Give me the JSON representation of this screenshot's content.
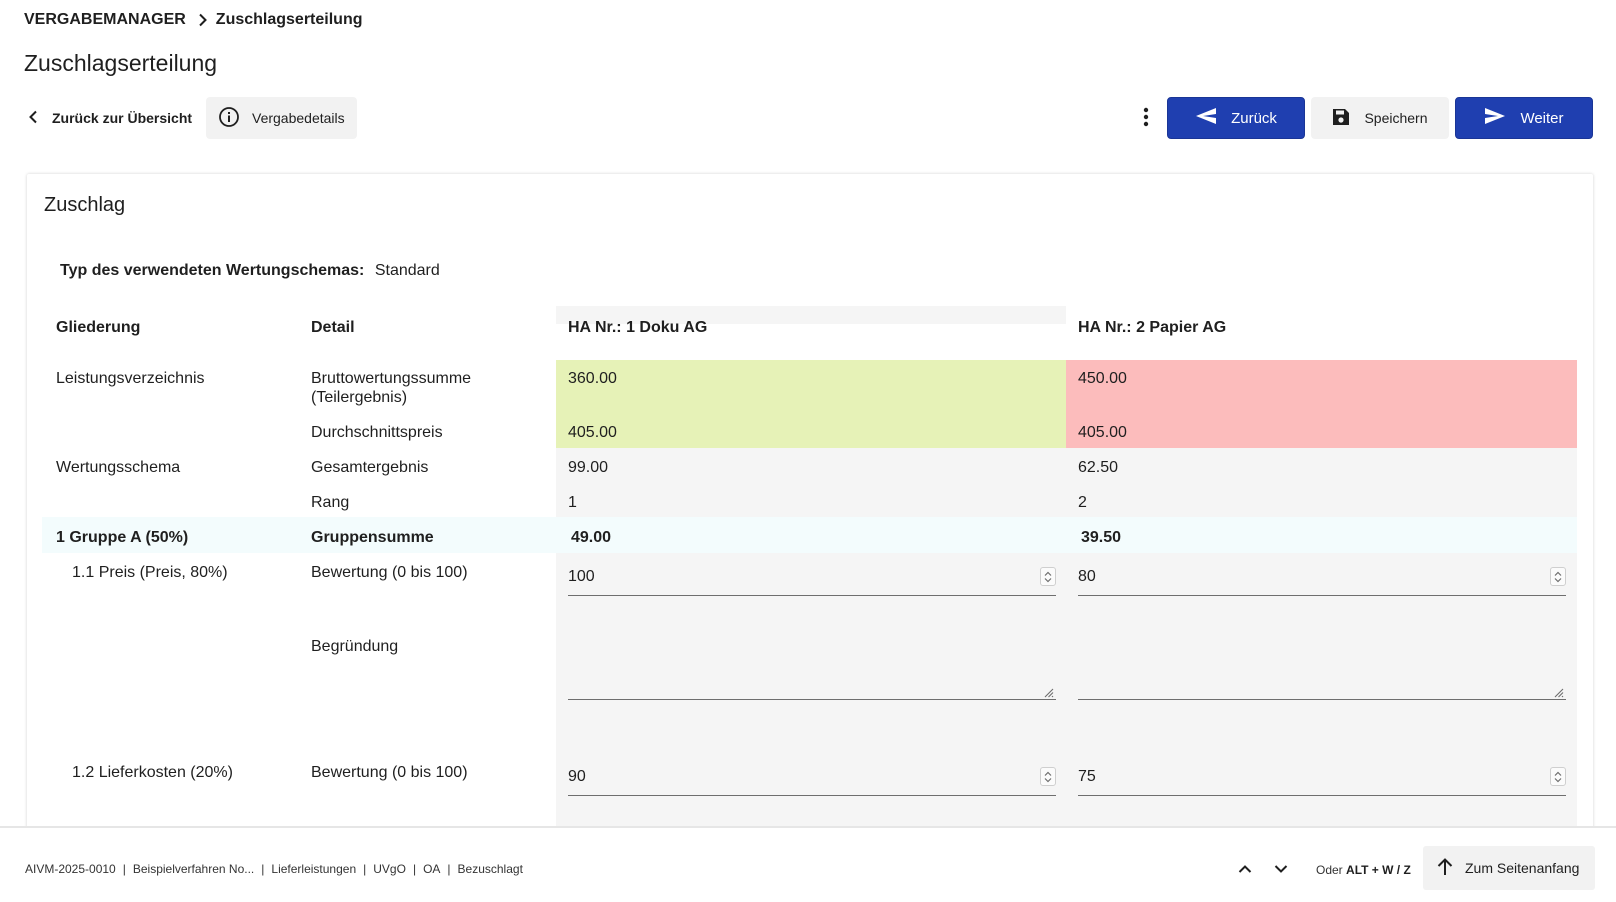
{
  "breadcrumb": {
    "root": "VERGABEMANAGER",
    "current": "Zuschlagserteilung"
  },
  "page_title": "Zuschlagserteilung",
  "toolbar": {
    "back_overview": "Zurück zur Übersicht",
    "details": "Vergabedetails",
    "zurueck": "Zurück",
    "speichern": "Speichern",
    "weiter": "Weiter"
  },
  "card": {
    "title": "Zuschlag",
    "schema_label": "Typ des verwendeten Wertungschemas:",
    "schema_value": "Standard",
    "headers": {
      "gliederung": "Gliederung",
      "detail": "Detail",
      "bidder1": "HA Nr.: 1 Doku AG",
      "bidder2": "HA Nr.: 2 Papier AG"
    },
    "rows": {
      "lv": {
        "gliederung": "Leistungsverzeichnis",
        "detail1": "Bruttowertungssumme (Teilergebnis)",
        "b1_v1": "360.00",
        "b2_v1": "450.00",
        "detail2": "Durchschnittspreis",
        "b1_v2": "405.00",
        "b2_v2": "405.00"
      },
      "ws": {
        "gliederung": "Wertungsschema",
        "detail1": "Gesamtergebnis",
        "b1_v1": "99.00",
        "b2_v1": "62.50",
        "detail2": "Rang",
        "b1_v2": "1",
        "b2_v2": "2"
      },
      "group": {
        "gliederung": "1 Gruppe A (50%)",
        "detail": "Gruppensumme",
        "b1": "49.00",
        "b2": "39.50"
      },
      "preis": {
        "gliederung": "1.1 Preis (Preis, 80%)",
        "detail": "Bewertung (0 bis 100)",
        "b1": "100",
        "b2": "80",
        "begruendung": "Begründung"
      },
      "liefer": {
        "gliederung": "1.2 Lieferkosten (20%)",
        "detail": "Bewertung (0 bis 100)",
        "b1": "90",
        "b2": "75"
      }
    }
  },
  "footer": {
    "meta": [
      "AIVM-2025-0010",
      "Beispielverfahren No...",
      "Lieferleistungen",
      "UVgO",
      "OA",
      "Bezuschlagt"
    ],
    "shortcut_prefix": "Oder",
    "shortcut_keys": "ALT + W / Z",
    "top_button": "Zum Seitenanfang"
  },
  "colors": {
    "primary": "#1f3fb0",
    "best": "#e6f2b7",
    "worst": "#fcbcbc",
    "group_row": "#f3fcfd"
  },
  "icons": [
    "chevron-right-icon",
    "chevron-left-icon",
    "info-icon",
    "more-vert-icon",
    "send-back-icon",
    "save-icon",
    "send-icon",
    "chevron-up-icon",
    "chevron-down-icon",
    "arrow-up-icon",
    "resize-icon"
  ]
}
